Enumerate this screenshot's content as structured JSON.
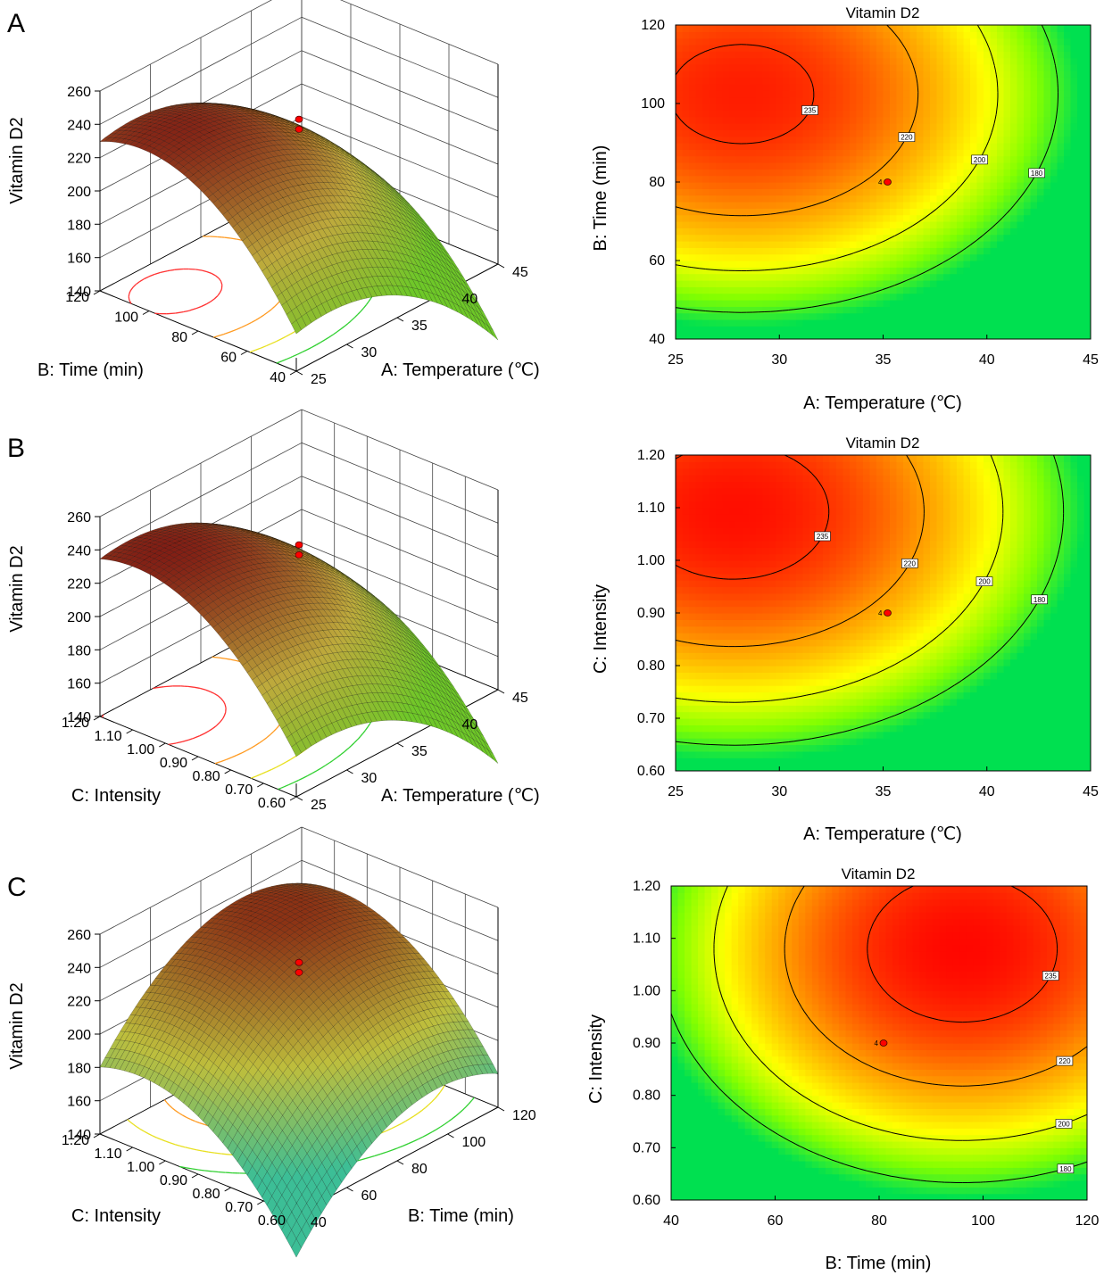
{
  "figure": {
    "panel_labels": [
      "A",
      "B",
      "C"
    ]
  },
  "chart_data": [
    {
      "type": "surface3d",
      "panel": "A",
      "x": {
        "label": "A: Temperature (℃)",
        "ticks": [
          25,
          30,
          35,
          40,
          45
        ],
        "range": [
          25,
          45
        ]
      },
      "y": {
        "label": "B: Time (min)",
        "ticks": [
          40,
          60,
          80,
          100,
          120
        ],
        "range": [
          40,
          120
        ]
      },
      "z": {
        "label": "Vitamin D2",
        "ticks": [
          140,
          160,
          180,
          200,
          220,
          240,
          260
        ],
        "range": [
          140,
          260
        ]
      },
      "corners": {
        "x_low_y_low": 198,
        "x_low_y_high": 222,
        "x_high_y_low": 148,
        "x_high_y_high": 196
      },
      "design_point": {
        "x": 35,
        "y": 80,
        "z_values": [
          235,
          229
        ]
      }
    },
    {
      "type": "contour",
      "panel": "A",
      "title": "Vitamin D2",
      "x": {
        "label": "A: Temperature (℃)",
        "ticks": [
          25,
          30,
          35,
          40,
          45
        ],
        "range": [
          25,
          45
        ]
      },
      "y": {
        "label": "B: Time (min)",
        "ticks": [
          40,
          60,
          80,
          100,
          120
        ],
        "range": [
          40,
          120
        ]
      },
      "contour_labels": [
        "235",
        "220",
        "200",
        "180"
      ],
      "point_label": "4",
      "design_point": {
        "x": 35,
        "y": 80
      }
    },
    {
      "type": "surface3d",
      "panel": "B",
      "x": {
        "label": "A: Temperature (℃)",
        "ticks": [
          25,
          30,
          35,
          40,
          45
        ],
        "range": [
          25,
          45
        ]
      },
      "y": {
        "label": "C: Intensity",
        "ticks": [
          "0.60",
          "0.70",
          "0.80",
          "0.90",
          "1.00",
          "1.10",
          "1.20"
        ],
        "range": [
          0.6,
          1.2
        ]
      },
      "z": {
        "label": "Vitamin D2",
        "ticks": [
          140,
          160,
          180,
          200,
          220,
          240,
          260
        ],
        "range": [
          140,
          260
        ]
      },
      "corners": {
        "x_low_y_low": 196,
        "x_low_y_high": 234,
        "x_high_y_low": 150,
        "x_high_y_high": 196
      },
      "design_point": {
        "x": 35,
        "y": 0.9,
        "z_values": [
          235,
          229
        ]
      }
    },
    {
      "type": "contour",
      "panel": "B",
      "title": "Vitamin D2",
      "x": {
        "label": "A: Temperature (℃)",
        "ticks": [
          25,
          30,
          35,
          40,
          45
        ],
        "range": [
          25,
          45
        ]
      },
      "y": {
        "label": "C: Intensity",
        "ticks": [
          "0.60",
          "0.70",
          "0.80",
          "0.90",
          "1.00",
          "1.10",
          "1.20"
        ],
        "range": [
          0.6,
          1.2
        ]
      },
      "contour_labels": [
        "235",
        "220",
        "200",
        "180"
      ],
      "point_label": "4",
      "design_point": {
        "x": 35,
        "y": 0.9
      }
    },
    {
      "type": "surface3d",
      "panel": "C",
      "x": {
        "label": "B: Time (min)",
        "ticks": [
          40,
          60,
          80,
          100,
          120
        ],
        "range": [
          40,
          120
        ]
      },
      "y": {
        "label": "C: Intensity",
        "ticks": [
          "0.60",
          "0.70",
          "0.80",
          "0.90",
          "1.00",
          "1.10",
          "1.20"
        ],
        "range": [
          0.6,
          1.2
        ]
      },
      "z": {
        "label": "Vitamin D2",
        "ticks": [
          140,
          160,
          180,
          200,
          220,
          240,
          260
        ],
        "range": [
          140,
          260
        ]
      },
      "corners": {
        "x_low_y_low": 146,
        "x_low_y_high": 200,
        "x_high_y_low": 200,
        "x_high_y_high": 206
      },
      "design_point": {
        "x": 80,
        "y": 0.9,
        "z_values": [
          235,
          229
        ]
      }
    },
    {
      "type": "contour",
      "panel": "C",
      "title": "Vitamin D2",
      "x": {
        "label": "B: Time (min)",
        "ticks": [
          40,
          60,
          80,
          100,
          120
        ],
        "range": [
          40,
          120
        ]
      },
      "y": {
        "label": "C: Intensity",
        "ticks": [
          "0.60",
          "0.70",
          "0.80",
          "0.90",
          "1.00",
          "1.10",
          "1.20"
        ],
        "range": [
          0.6,
          1.2
        ]
      },
      "contour_labels": [
        "235",
        "220",
        "200",
        "180"
      ],
      "point_label": "4",
      "design_point": {
        "x": 80,
        "y": 0.9
      }
    }
  ]
}
